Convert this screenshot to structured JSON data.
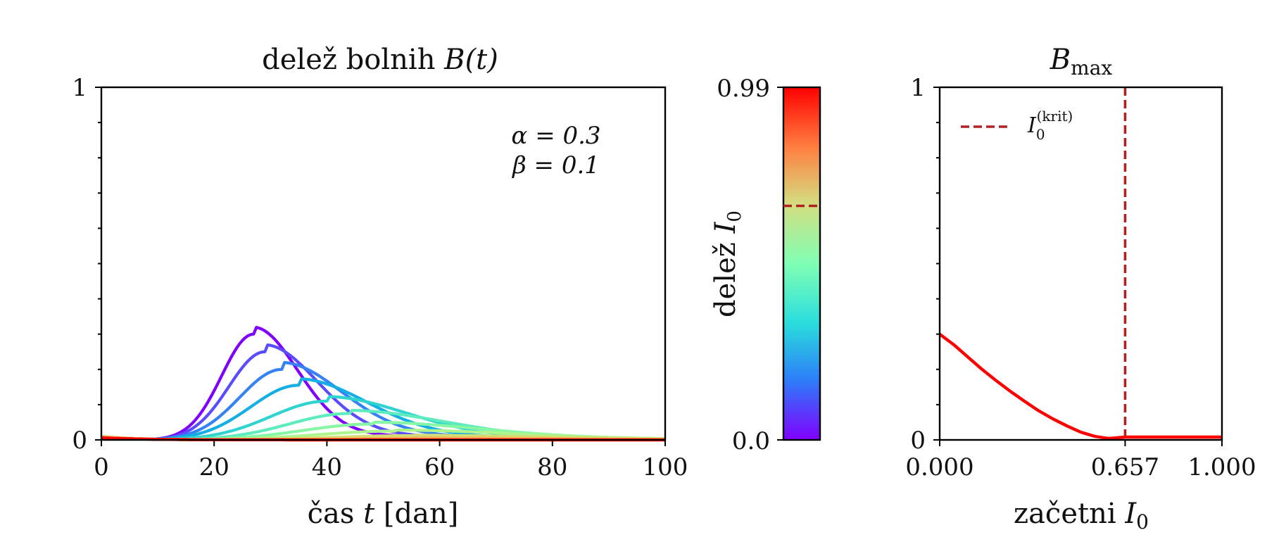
{
  "figure_title": "",
  "chart_data": [
    {
      "type": "line",
      "title": "delež bolnih B(t)",
      "title_plain": "delež bolnih ",
      "title_math": "B(t)",
      "xlabel_plain": "čas ",
      "xlabel_math": "t",
      "xlabel_unit": "[dan]",
      "ylabel": "",
      "xlim": [
        0,
        100
      ],
      "ylim": [
        0,
        1
      ],
      "xticks": [
        0,
        20,
        40,
        60,
        80,
        100
      ],
      "xtick_labels": [
        "0",
        "20",
        "40",
        "60",
        "80",
        "100"
      ],
      "yticks": [
        0,
        1
      ],
      "ytick_labels": [
        "0",
        "1"
      ],
      "annotations": [
        "α = 0.3",
        "β = 0.1"
      ],
      "curve_note": "one curve per initial fraction I0, color mapped by colorbar",
      "series": [
        {
          "name": "I0=0.00",
          "I0": 0.0,
          "color": "#8000ff",
          "peak_t": 27,
          "peak_B": 0.3,
          "width_left": 8.0,
          "width_right": 11.0
        },
        {
          "name": "I0=0.07",
          "I0": 0.07,
          "color": "#5a4cff",
          "peak_t": 29,
          "peak_B": 0.25,
          "width_left": 9.0,
          "width_right": 13.0
        },
        {
          "name": "I0=0.13",
          "I0": 0.13,
          "color": "#3482f5",
          "peak_t": 32,
          "peak_B": 0.2,
          "width_left": 10.5,
          "width_right": 15.0
        },
        {
          "name": "I0=0.20",
          "I0": 0.2,
          "color": "#12aee5",
          "peak_t": 35,
          "peak_B": 0.155,
          "width_left": 12.0,
          "width_right": 17.0
        },
        {
          "name": "I0=0.27",
          "I0": 0.27,
          "color": "#2fd3d0",
          "peak_t": 40,
          "peak_B": 0.11,
          "width_left": 14.0,
          "width_right": 20.0
        },
        {
          "name": "I0=0.33",
          "I0": 0.33,
          "color": "#5cecbe",
          "peak_t": 44,
          "peak_B": 0.075,
          "width_left": 15.0,
          "width_right": 24.0
        },
        {
          "name": "I0=0.40",
          "I0": 0.4,
          "color": "#87f7a6",
          "peak_t": 48,
          "peak_B": 0.045,
          "width_left": 17.0,
          "width_right": 28.0
        },
        {
          "name": "I0=0.47",
          "I0": 0.47,
          "color": "#adf68d",
          "peak_t": 52,
          "peak_B": 0.025,
          "width_left": 19.0,
          "width_right": 32.0
        },
        {
          "name": "I0=0.53",
          "I0": 0.53,
          "color": "#d4de73",
          "peak_t": 55,
          "peak_B": 0.012,
          "width_left": 20.0,
          "width_right": 34.0
        },
        {
          "name": "I0=0.60",
          "I0": 0.6,
          "color": "#f5b45a",
          "peak_t": 58,
          "peak_B": 0.005,
          "width_left": 20.0,
          "width_right": 35.0
        },
        {
          "name": "I0=0.66",
          "I0": 0.66,
          "color": "#ff8040",
          "peak_t": 50,
          "peak_B": 0.0,
          "width_left": 20.0,
          "width_right": 35.0
        },
        {
          "name": "I0=0.80",
          "I0": 0.8,
          "color": "#ff4626",
          "peak_t": 50,
          "peak_B": 0.0,
          "width_left": 20.0,
          "width_right": 35.0
        },
        {
          "name": "I0=0.99",
          "I0": 0.99,
          "color": "#ff0000",
          "peak_t": 50,
          "peak_B": 0.0,
          "width_left": 20.0,
          "width_right": 35.0
        }
      ],
      "initial_B": 0.01
    },
    {
      "type": "colorbar",
      "label_plain": "delež ",
      "label_math": "I",
      "label_sub": "0",
      "range": [
        0.0,
        0.99
      ],
      "tick_labels": [
        "0.0",
        "0.99"
      ],
      "critical_marker": 0.657,
      "marker_color": "#b22222",
      "colors": [
        "#8000ff",
        "#2c7ef8",
        "#2adddd",
        "#80ffb4",
        "#d4dd80",
        "#ff7f40",
        "#ff0000"
      ]
    },
    {
      "type": "line",
      "title_math": "B",
      "title_sub": "max",
      "xlabel_plain": "začetni ",
      "xlabel_math": "I",
      "xlabel_sub": "0",
      "xlim": [
        0,
        1
      ],
      "ylim": [
        0,
        1
      ],
      "xticks": [
        0,
        0.657,
        1
      ],
      "xtick_labels": [
        "0.000",
        "0.657",
        "1.000"
      ],
      "yticks": [
        0,
        1
      ],
      "ytick_labels": [
        "0",
        "1"
      ],
      "series": [
        {
          "name": "B_max",
          "color": "#ff0000",
          "x": [
            0.0,
            0.05,
            0.1,
            0.15,
            0.2,
            0.25,
            0.3,
            0.35,
            0.4,
            0.45,
            0.5,
            0.55,
            0.6,
            0.657,
            0.7,
            0.8,
            0.9,
            1.0
          ],
          "y": [
            0.3,
            0.27,
            0.235,
            0.2,
            0.168,
            0.138,
            0.11,
            0.083,
            0.06,
            0.04,
            0.022,
            0.01,
            0.004,
            0.008,
            0.008,
            0.008,
            0.008,
            0.008
          ]
        }
      ],
      "critical_line": {
        "x": 0.657,
        "color": "#b22222",
        "style": "dashed"
      },
      "legend": {
        "label_math": "I",
        "label_sub": "0",
        "label_sup": "(krit)",
        "location": "upper-left"
      }
    }
  ]
}
